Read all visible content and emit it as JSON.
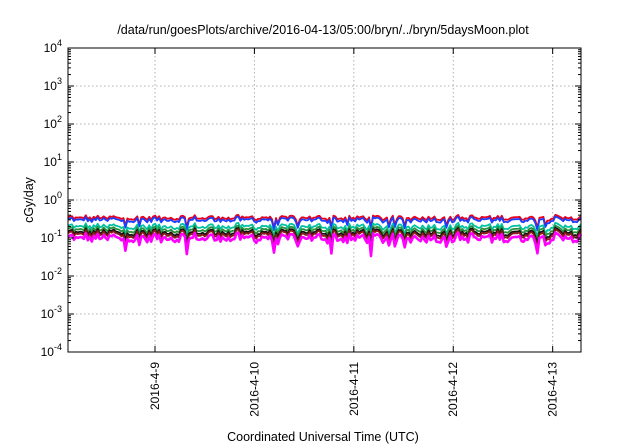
{
  "chart_data": {
    "type": "line",
    "title": "/data/run/goesPlots/archive/2016-04-13/05:00/bryn/../bryn/5daysMoon.plot",
    "xlabel": "Coordinated Universal Time (UTC)",
    "ylabel": "cGy/day",
    "yscale": "log",
    "ylim": [
      0.0001,
      10000
    ],
    "xlim": [
      "2016-04-08 03:00",
      "2016-04-13 03:00"
    ],
    "grid": true,
    "y_ticks": [
      {
        "base": "10",
        "exp": "-4"
      },
      {
        "base": "10",
        "exp": "-3"
      },
      {
        "base": "10",
        "exp": "-2"
      },
      {
        "base": "10",
        "exp": "-1"
      },
      {
        "base": "10",
        "exp": "0"
      },
      {
        "base": "10",
        "exp": "1"
      },
      {
        "base": "10",
        "exp": "2"
      },
      {
        "base": "10",
        "exp": "3"
      },
      {
        "base": "10",
        "exp": "4"
      }
    ],
    "x_ticks": [
      "2016-4-9",
      "2016-4-10",
      "2016-4-11",
      "2016-4-12",
      "2016-4-13"
    ],
    "series": [
      {
        "color": "#e8001c",
        "level": 0.34
      },
      {
        "color": "#1a3cff",
        "level": 0.3
      },
      {
        "color": "#00c2a0",
        "level": 0.2
      },
      {
        "color": "#2a8f3a",
        "level": 0.165
      },
      {
        "color": "#111111",
        "level": 0.14
      },
      {
        "color": "#8b1a1a",
        "level": 0.125
      },
      {
        "color": "#ff00ff",
        "level": 0.1
      }
    ]
  }
}
